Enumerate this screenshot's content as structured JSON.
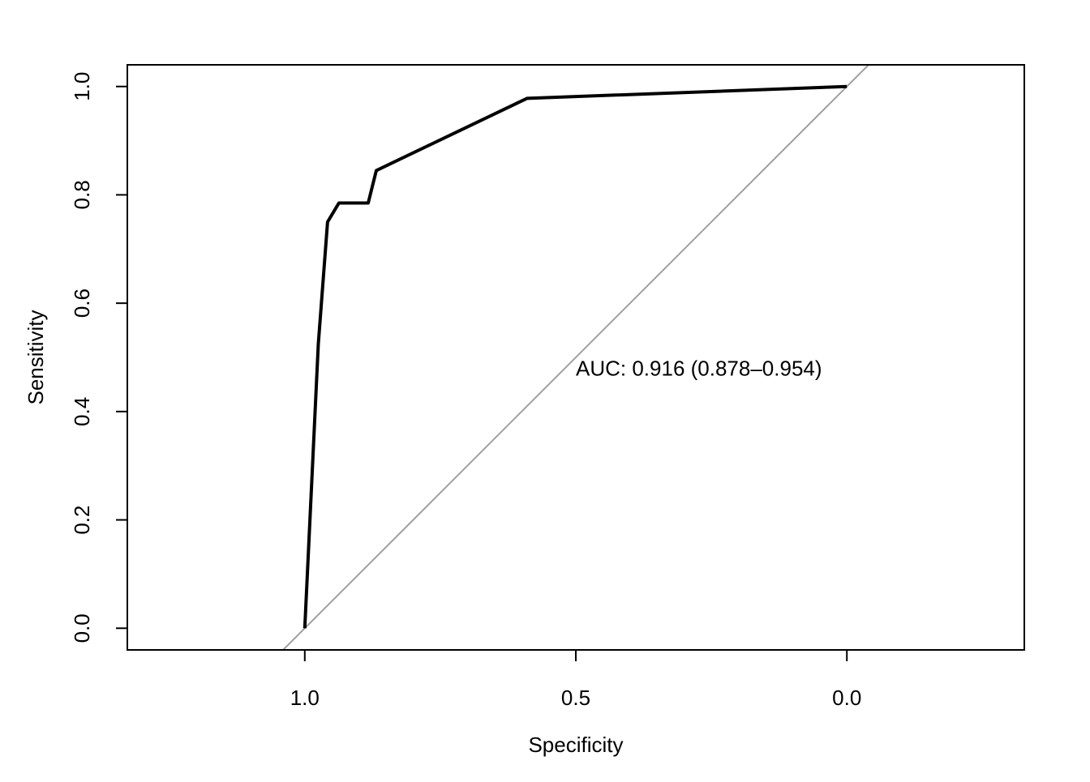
{
  "chart_data": {
    "type": "line",
    "title": "",
    "xlabel": "Specificity",
    "ylabel": "Sensitivity",
    "x_reversed": true,
    "xlim": [
      1.3273,
      -0.3273
    ],
    "ylim": [
      -0.04,
      1.04
    ],
    "x_ticks": [
      {
        "value": 1.0,
        "label": "1.0"
      },
      {
        "value": 0.5,
        "label": "0.5"
      },
      {
        "value": 0.0,
        "label": "0.0"
      }
    ],
    "y_ticks": [
      {
        "value": 0.0,
        "label": "0.0"
      },
      {
        "value": 0.2,
        "label": "0.2"
      },
      {
        "value": 0.4,
        "label": "0.4"
      },
      {
        "value": 0.6,
        "label": "0.6"
      },
      {
        "value": 0.8,
        "label": "0.8"
      },
      {
        "value": 1.0,
        "label": "1.0"
      }
    ],
    "grid": false,
    "series": [
      {
        "color": "#000000",
        "x": [
          1.0,
          0.975,
          0.958,
          0.937,
          0.916,
          0.883,
          0.868,
          0.59,
          0.0
        ],
        "y": [
          0.0,
          0.525,
          0.75,
          0.785,
          0.785,
          0.785,
          0.845,
          0.978,
          1.0
        ]
      }
    ],
    "reference_line": {
      "color": "#a0a0a0",
      "from": [
        1.0,
        0.0
      ],
      "to": [
        0.0,
        1.0
      ]
    },
    "annotations": [
      {
        "text": "AUC: 0.916 (0.878–0.954)",
        "x": 0.5,
        "y": 0.48
      }
    ]
  }
}
